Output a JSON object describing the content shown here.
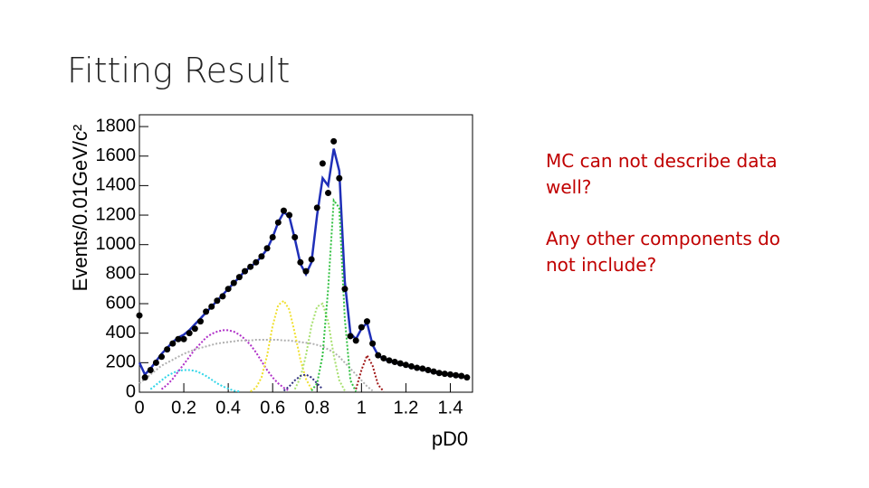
{
  "slide_title": "Fitting Result",
  "notes": [
    "MC can not describe data well?",
    "Any other components do not include?"
  ],
  "chart_data": {
    "type": "line",
    "xlabel": "pD0",
    "ylabel": "Events/0.01GeV/c²",
    "xlim": [
      0,
      1.5
    ],
    "ylim": [
      0,
      1880
    ],
    "xticks": [
      0,
      0.2,
      0.4,
      0.6,
      0.8,
      1,
      1.2,
      1.4
    ],
    "yticks": [
      0,
      200,
      400,
      600,
      800,
      1000,
      1200,
      1400,
      1600,
      1800
    ],
    "series": [
      {
        "color": "#000000",
        "style": "markers",
        "x": [
          0,
          0.025,
          0.05,
          0.075,
          0.1,
          0.125,
          0.15,
          0.175,
          0.2,
          0.225,
          0.25,
          0.275,
          0.3,
          0.325,
          0.35,
          0.375,
          0.4,
          0.425,
          0.45,
          0.475,
          0.5,
          0.525,
          0.55,
          0.575,
          0.6,
          0.625,
          0.65,
          0.675,
          0.7,
          0.725,
          0.75,
          0.775,
          0.8,
          0.825,
          0.85,
          0.875,
          0.9,
          0.925,
          0.95,
          0.975,
          1,
          1.025,
          1.05,
          1.075,
          1.1,
          1.125,
          1.15,
          1.175,
          1.2,
          1.225,
          1.25,
          1.275,
          1.3,
          1.325,
          1.35,
          1.375,
          1.4,
          1.425,
          1.45,
          1.475
        ],
        "values": [
          520,
          100,
          150,
          200,
          240,
          290,
          330,
          360,
          360,
          400,
          430,
          480,
          546,
          580,
          620,
          650,
          700,
          740,
          780,
          820,
          850,
          880,
          920,
          975,
          1050,
          1150,
          1230,
          1200,
          1050,
          880,
          820,
          900,
          1250,
          1550,
          1350,
          1700,
          1450,
          700,
          380,
          350,
          440,
          480,
          330,
          250,
          230,
          215,
          205,
          195,
          185,
          175,
          165,
          160,
          150,
          140,
          130,
          125,
          120,
          115,
          110,
          100
        ]
      },
      {
        "color": "#1f2fb8",
        "style": "solid",
        "x": [
          0,
          0.025,
          0.05,
          0.075,
          0.1,
          0.125,
          0.15,
          0.175,
          0.2,
          0.225,
          0.25,
          0.275,
          0.3,
          0.325,
          0.35,
          0.375,
          0.4,
          0.425,
          0.45,
          0.475,
          0.5,
          0.525,
          0.55,
          0.575,
          0.6,
          0.625,
          0.65,
          0.675,
          0.7,
          0.725,
          0.75,
          0.775,
          0.8,
          0.825,
          0.85,
          0.875,
          0.9,
          0.925,
          0.95,
          0.975,
          1,
          1.025,
          1.05,
          1.075,
          1.1,
          1.125,
          1.15,
          1.175,
          1.2,
          1.225,
          1.25,
          1.275,
          1.3,
          1.325,
          1.35,
          1.375,
          1.4,
          1.425,
          1.45,
          1.475
        ],
        "values": [
          200,
          120,
          160,
          210,
          260,
          300,
          340,
          370,
          390,
          420,
          460,
          500,
          540,
          580,
          620,
          660,
          700,
          740,
          780,
          820,
          850,
          880,
          920,
          970,
          1050,
          1150,
          1220,
          1190,
          1040,
          870,
          800,
          880,
          1200,
          1450,
          1400,
          1650,
          1500,
          750,
          400,
          360,
          430,
          470,
          320,
          250,
          225,
          210,
          200,
          190,
          180,
          170,
          160,
          155,
          145,
          135,
          128,
          122,
          116,
          110,
          105,
          100
        ]
      },
      {
        "color": "#33d6e8",
        "style": "dotted",
        "x": [
          0.05,
          0.075,
          0.1,
          0.125,
          0.15,
          0.175,
          0.2,
          0.225,
          0.25,
          0.275,
          0.3,
          0.325,
          0.35,
          0.375,
          0.4,
          0.425,
          0.45
        ],
        "values": [
          20,
          50,
          80,
          110,
          130,
          145,
          150,
          150,
          145,
          130,
          110,
          85,
          60,
          40,
          25,
          10,
          5
        ]
      },
      {
        "color": "#b030c8",
        "style": "dotted",
        "x": [
          0.1,
          0.125,
          0.15,
          0.175,
          0.2,
          0.225,
          0.25,
          0.275,
          0.3,
          0.325,
          0.35,
          0.375,
          0.4,
          0.425,
          0.45,
          0.475,
          0.5,
          0.525,
          0.55,
          0.575,
          0.6,
          0.625,
          0.65,
          0.675
        ],
        "values": [
          20,
          50,
          90,
          140,
          190,
          240,
          290,
          330,
          370,
          395,
          410,
          420,
          420,
          410,
          390,
          360,
          320,
          270,
          210,
          150,
          100,
          60,
          30,
          10
        ]
      },
      {
        "color": "#b0b0b0",
        "style": "dotted",
        "x": [
          0,
          0.025,
          0.05,
          0.075,
          0.1,
          0.125,
          0.15,
          0.175,
          0.2,
          0.225,
          0.25,
          0.275,
          0.3,
          0.325,
          0.35,
          0.375,
          0.4,
          0.425,
          0.45,
          0.475,
          0.5,
          0.525,
          0.55,
          0.575,
          0.6,
          0.625,
          0.65,
          0.675,
          0.7,
          0.725,
          0.75,
          0.775,
          0.8,
          0.825,
          0.85,
          0.875,
          0.9,
          0.925,
          0.95,
          0.975,
          1,
          1.025,
          1.05
        ],
        "values": [
          60,
          90,
          120,
          150,
          180,
          200,
          220,
          240,
          260,
          275,
          290,
          300,
          310,
          320,
          330,
          335,
          340,
          345,
          350,
          350,
          350,
          355,
          355,
          355,
          355,
          355,
          350,
          350,
          345,
          340,
          335,
          330,
          320,
          310,
          290,
          270,
          240,
          200,
          160,
          120,
          80,
          40,
          10
        ]
      },
      {
        "color": "#f0e030",
        "style": "dotted",
        "x": [
          0.5,
          0.525,
          0.55,
          0.575,
          0.6,
          0.625,
          0.65,
          0.675,
          0.7,
          0.725,
          0.75,
          0.775
        ],
        "values": [
          5,
          30,
          100,
          250,
          450,
          590,
          620,
          560,
          400,
          220,
          90,
          20
        ]
      },
      {
        "color": "#a8e070",
        "style": "dotted",
        "x": [
          0.7,
          0.725,
          0.75,
          0.775,
          0.8,
          0.825,
          0.85,
          0.875,
          0.9,
          0.925
        ],
        "values": [
          20,
          100,
          250,
          450,
          580,
          600,
          480,
          250,
          80,
          10
        ]
      },
      {
        "color": "#30c040",
        "style": "dotted",
        "x": [
          0.775,
          0.8,
          0.825,
          0.85,
          0.875,
          0.9,
          0.925,
          0.95,
          0.975
        ],
        "values": [
          10,
          60,
          250,
          700,
          1300,
          1250,
          500,
          80,
          5
        ]
      },
      {
        "color": "#303080",
        "style": "dotted",
        "x": [
          0.65,
          0.675,
          0.7,
          0.725,
          0.75,
          0.775,
          0.8,
          0.825
        ],
        "values": [
          10,
          40,
          80,
          110,
          120,
          100,
          60,
          20
        ]
      },
      {
        "color": "#a01818",
        "style": "dotted",
        "x": [
          0.975,
          1,
          1.025,
          1.05,
          1.075,
          1.1
        ],
        "values": [
          20,
          150,
          250,
          180,
          50,
          5
        ]
      }
    ]
  }
}
